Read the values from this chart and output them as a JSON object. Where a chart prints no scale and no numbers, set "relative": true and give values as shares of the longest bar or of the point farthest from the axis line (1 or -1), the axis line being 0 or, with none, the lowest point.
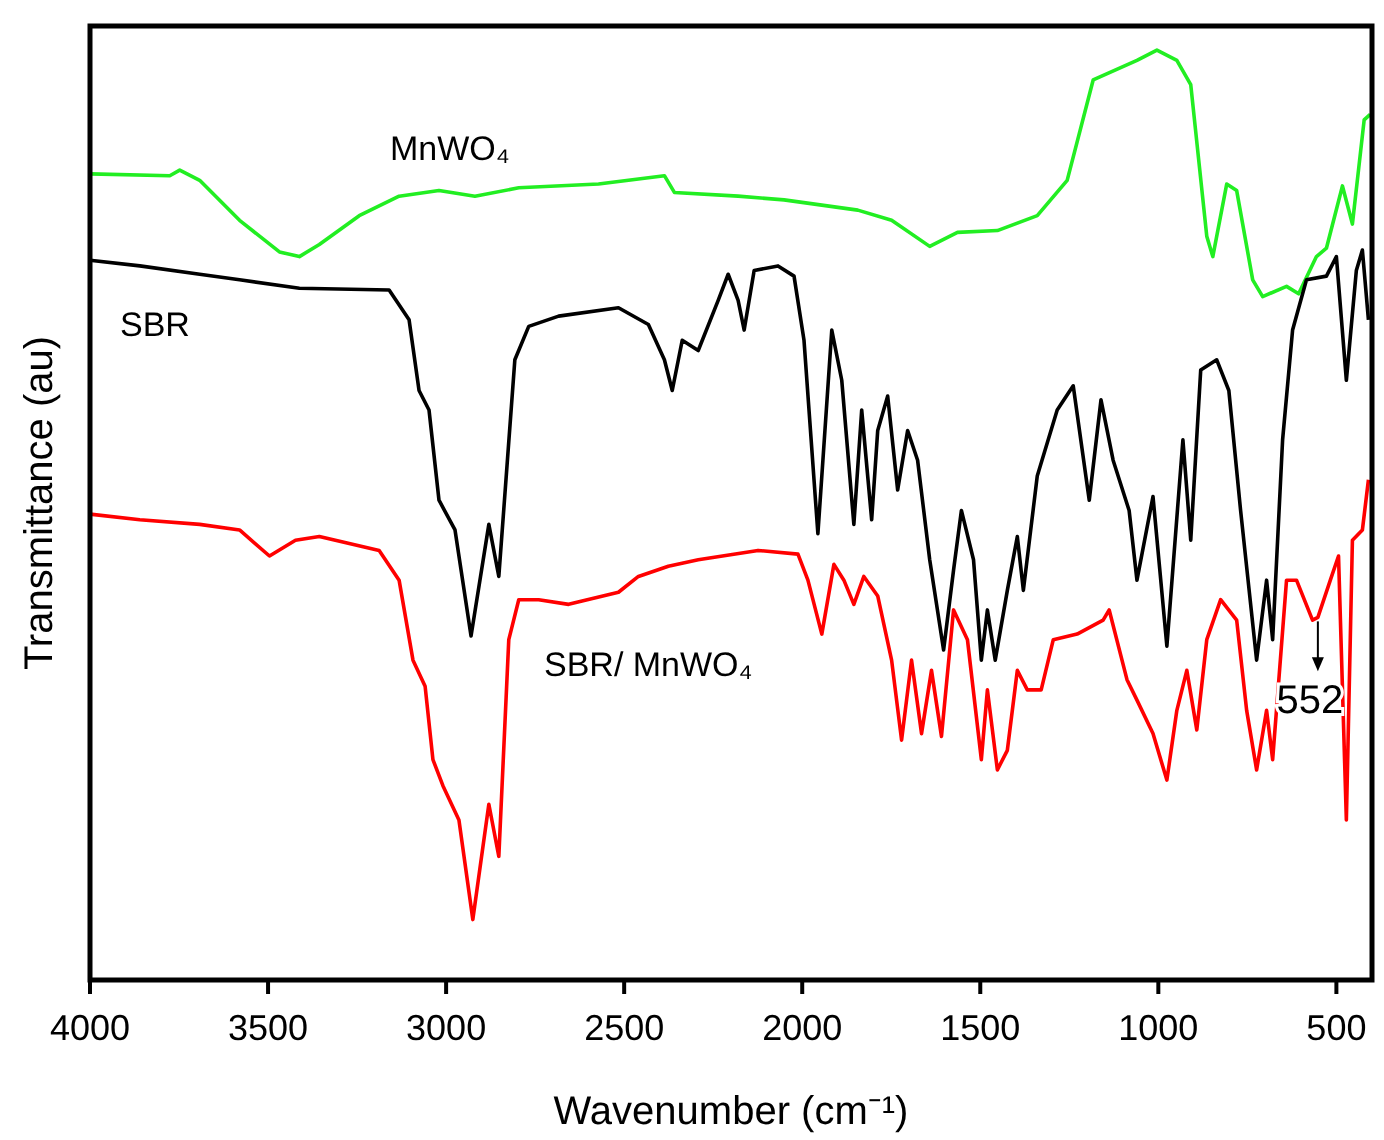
{
  "chart_data": {
    "type": "line",
    "relative": true,
    "xlabel": "Wavenumber (cm⁻¹)",
    "ylabel": "Transmittance (au)",
    "xlim": [
      4000,
      400
    ],
    "xticks": [
      4000,
      3500,
      3000,
      2500,
      2000,
      1500,
      1000,
      500
    ],
    "annotations": [
      {
        "text": "552",
        "x": 552,
        "y": 0.39
      }
    ],
    "series": [
      {
        "name": "MnWO₄",
        "color": "#22ee22",
        "x": [
          4000,
          3776,
          3748,
          3692,
          3580,
          3468,
          3412,
          3356,
          3244,
          3132,
          3020,
          2919,
          2796,
          2572,
          2387,
          2359,
          2180,
          2051,
          1844,
          1749,
          1642,
          1564,
          1452,
          1340,
          1256,
          1183,
          1060,
          1004,
          948,
          909,
          864,
          847,
          808,
          780,
          735,
          707,
          640,
          606,
          556,
          528,
          483,
          455,
          422,
          405
        ],
        "values": [
          0.867,
          0.865,
          0.871,
          0.86,
          0.817,
          0.783,
          0.778,
          0.791,
          0.822,
          0.843,
          0.849,
          0.843,
          0.852,
          0.856,
          0.865,
          0.847,
          0.843,
          0.839,
          0.828,
          0.817,
          0.789,
          0.804,
          0.806,
          0.822,
          0.86,
          0.968,
          0.989,
          1,
          0.989,
          0.963,
          0.8,
          0.778,
          0.856,
          0.849,
          0.753,
          0.735,
          0.746,
          0.738,
          0.778,
          0.787,
          0.854,
          0.813,
          0.925,
          0.931
        ]
      },
      {
        "name": "SBR",
        "color": "#000000",
        "x": [
          4000,
          3860,
          3692,
          3580,
          3412,
          3160,
          3104,
          3076,
          3048,
          3020,
          2975,
          2930,
          2880,
          2852,
          2807,
          2768,
          2684,
          2516,
          2432,
          2387,
          2365,
          2337,
          2292,
          2236,
          2208,
          2180,
          2163,
          2135,
          2068,
          2023,
          1995,
          1956,
          1917,
          1889,
          1855,
          1833,
          1805,
          1788,
          1760,
          1732,
          1704,
          1676,
          1642,
          1603,
          1575,
          1553,
          1519,
          1497,
          1480,
          1458,
          1424,
          1396,
          1379,
          1340,
          1284,
          1239,
          1194,
          1161,
          1127,
          1082,
          1060,
          1015,
          976,
          931,
          909,
          881,
          836,
          802,
          769,
          724,
          696,
          679,
          651,
          623,
          584,
          528,
          500,
          472,
          444,
          427,
          410
        ],
        "values": [
          0.774,
          0.768,
          0.759,
          0.753,
          0.744,
          0.742,
          0.71,
          0.634,
          0.613,
          0.516,
          0.484,
          0.37,
          0.49,
          0.434,
          0.667,
          0.703,
          0.714,
          0.723,
          0.705,
          0.667,
          0.634,
          0.688,
          0.677,
          0.731,
          0.759,
          0.731,
          0.699,
          0.763,
          0.768,
          0.757,
          0.688,
          0.48,
          0.699,
          0.645,
          0.49,
          0.613,
          0.495,
          0.591,
          0.628,
          0.527,
          0.591,
          0.559,
          0.452,
          0.355,
          0.441,
          0.505,
          0.452,
          0.344,
          0.398,
          0.344,
          0.419,
          0.477,
          0.419,
          0.542,
          0.613,
          0.639,
          0.516,
          0.624,
          0.559,
          0.505,
          0.43,
          0.52,
          0.359,
          0.581,
          0.473,
          0.656,
          0.667,
          0.634,
          0.505,
          0.344,
          0.43,
          0.366,
          0.581,
          0.699,
          0.753,
          0.757,
          0.778,
          0.645,
          0.763,
          0.785,
          0.71
        ]
      },
      {
        "name": "SBR/ MnWO₄",
        "color": "#ff0000",
        "x": [
          4000,
          3860,
          3692,
          3580,
          3496,
          3423,
          3356,
          3188,
          3132,
          3093,
          3059,
          3037,
          3009,
          2964,
          2925,
          2880,
          2852,
          2824,
          2796,
          2740,
          2656,
          2516,
          2460,
          2376,
          2292,
          2124,
          2012,
          1984,
          1945,
          1911,
          1883,
          1855,
          1827,
          1788,
          1749,
          1721,
          1693,
          1665,
          1637,
          1609,
          1575,
          1536,
          1497,
          1480,
          1452,
          1424,
          1396,
          1368,
          1329,
          1295,
          1228,
          1155,
          1138,
          1088,
          1060,
          1015,
          976,
          948,
          920,
          892,
          864,
          825,
          780,
          752,
          724,
          696,
          679,
          640,
          612,
          567,
          552,
          517,
          494,
          472,
          455,
          427,
          410
        ],
        "values": [
          0.501,
          0.495,
          0.49,
          0.484,
          0.456,
          0.473,
          0.477,
          0.462,
          0.43,
          0.344,
          0.316,
          0.237,
          0.209,
          0.172,
          0.065,
          0.189,
          0.133,
          0.366,
          0.409,
          0.409,
          0.404,
          0.417,
          0.434,
          0.445,
          0.452,
          0.462,
          0.458,
          0.43,
          0.372,
          0.447,
          0.43,
          0.404,
          0.434,
          0.413,
          0.344,
          0.258,
          0.344,
          0.265,
          0.333,
          0.262,
          0.398,
          0.366,
          0.237,
          0.312,
          0.226,
          0.247,
          0.333,
          0.312,
          0.312,
          0.366,
          0.372,
          0.387,
          0.398,
          0.323,
          0.301,
          0.265,
          0.215,
          0.29,
          0.333,
          0.269,
          0.366,
          0.409,
          0.387,
          0.29,
          0.226,
          0.29,
          0.237,
          0.43,
          0.43,
          0.387,
          0.39,
          0.43,
          0.456,
          0.172,
          0.473,
          0.484,
          0.538
        ]
      }
    ]
  }
}
